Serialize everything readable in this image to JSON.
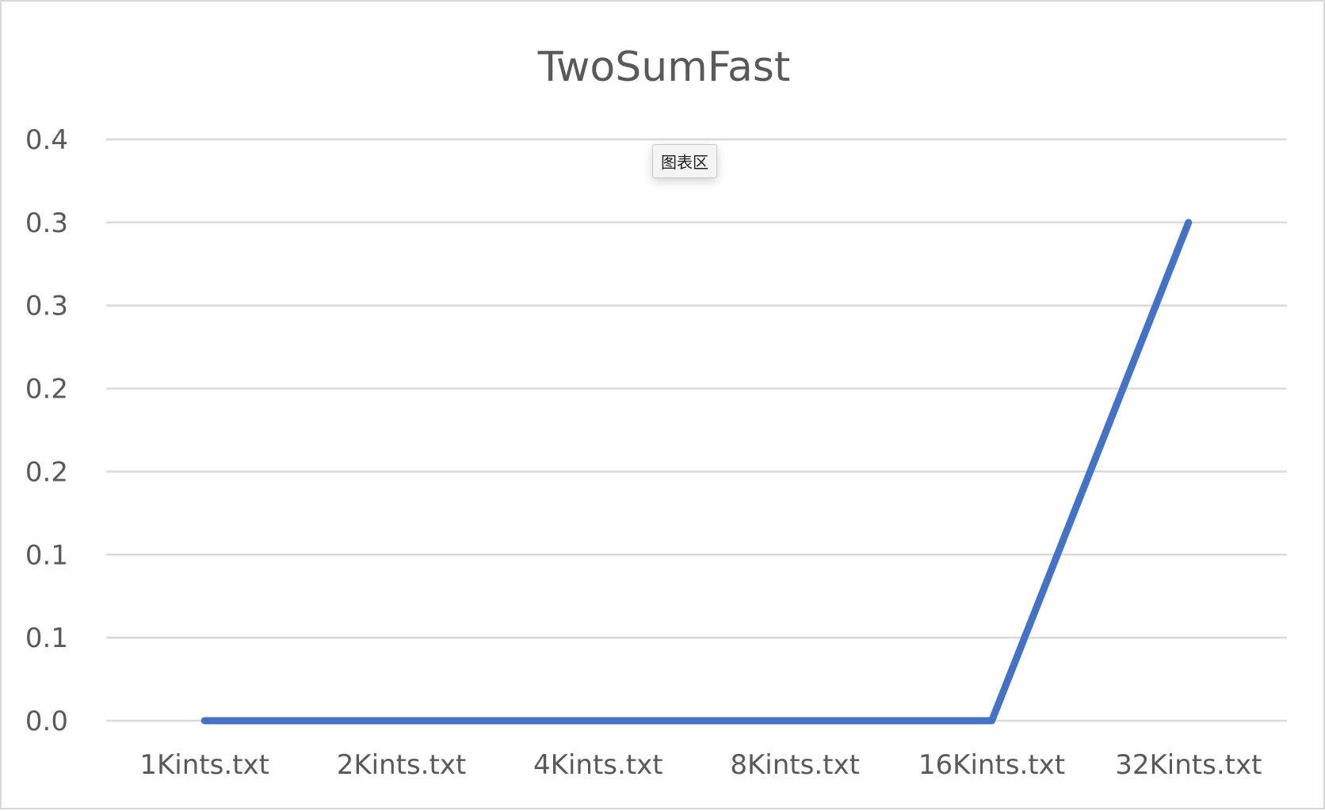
{
  "tooltip_text": "图表区",
  "colors": {
    "series": "#4472C4",
    "grid": "#d9d9d9",
    "text": "#595959"
  },
  "chart_data": {
    "type": "line",
    "title": "TwoSumFast",
    "xlabel": "",
    "ylabel": "",
    "categories": [
      "1Kints.txt",
      "2Kints.txt",
      "4Kints.txt",
      "8Kints.txt",
      "16Kints.txt",
      "32Kints.txt"
    ],
    "series": [
      {
        "values": [
          0.0,
          0.0,
          0.0,
          0.0,
          0.0,
          0.3
        ]
      }
    ],
    "ylim": [
      0,
      0.35
    ],
    "y_ticks": [
      0,
      0.05,
      0.1,
      0.15,
      0.2,
      0.25,
      0.3,
      0.35
    ],
    "y_tick_labels": [
      "0.0",
      "0.1",
      "0.1",
      "0.2",
      "0.2",
      "0.3",
      "0.3",
      "0.4"
    ],
    "grid": true,
    "legend": "none"
  }
}
